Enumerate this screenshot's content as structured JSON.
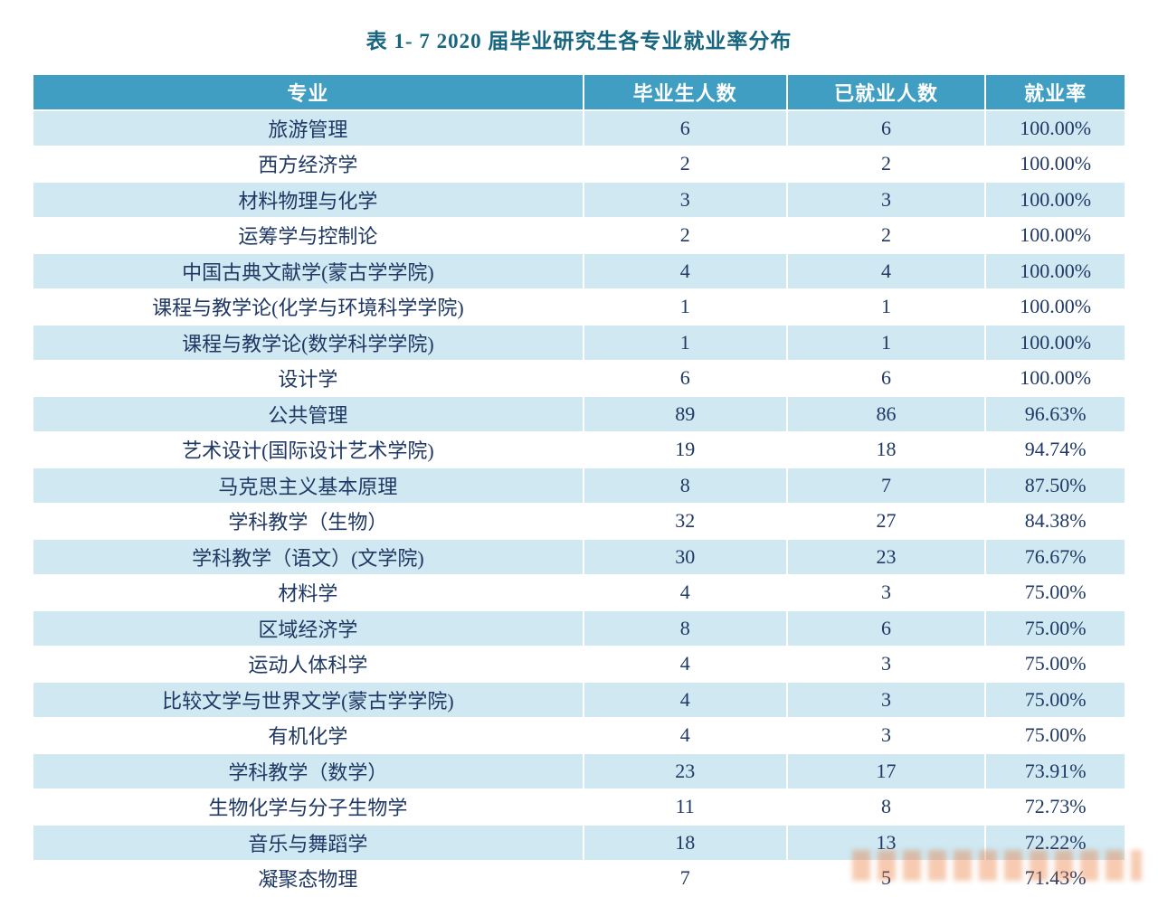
{
  "title": "表 1- 7  2020 届毕业研究生各专业就业率分布",
  "colors": {
    "header_bg": "#3f9ec2",
    "row_alt_bg": "#cfe8f2",
    "title_color": "#17657f",
    "text_color": "#1f3864"
  },
  "table": {
    "headers": [
      "专业",
      "毕业生人数",
      "已就业人数",
      "就业率"
    ],
    "rows": [
      [
        "旅游管理",
        "6",
        "6",
        "100.00%"
      ],
      [
        "西方经济学",
        "2",
        "2",
        "100.00%"
      ],
      [
        "材料物理与化学",
        "3",
        "3",
        "100.00%"
      ],
      [
        "运筹学与控制论",
        "2",
        "2",
        "100.00%"
      ],
      [
        "中国古典文献学(蒙古学学院)",
        "4",
        "4",
        "100.00%"
      ],
      [
        "课程与教学论(化学与环境科学学院)",
        "1",
        "1",
        "100.00%"
      ],
      [
        "课程与教学论(数学科学学院)",
        "1",
        "1",
        "100.00%"
      ],
      [
        "设计学",
        "6",
        "6",
        "100.00%"
      ],
      [
        "公共管理",
        "89",
        "86",
        "96.63%"
      ],
      [
        "艺术设计(国际设计艺术学院)",
        "19",
        "18",
        "94.74%"
      ],
      [
        "马克思主义基本原理",
        "8",
        "7",
        "87.50%"
      ],
      [
        "学科教学（生物）",
        "32",
        "27",
        "84.38%"
      ],
      [
        "学科教学（语文）(文学院)",
        "30",
        "23",
        "76.67%"
      ],
      [
        "材料学",
        "4",
        "3",
        "75.00%"
      ],
      [
        "区域经济学",
        "8",
        "6",
        "75.00%"
      ],
      [
        "运动人体科学",
        "4",
        "3",
        "75.00%"
      ],
      [
        "比较文学与世界文学(蒙古学学院)",
        "4",
        "3",
        "75.00%"
      ],
      [
        "有机化学",
        "4",
        "3",
        "75.00%"
      ],
      [
        "学科教学（数学）",
        "23",
        "17",
        "73.91%"
      ],
      [
        "生物化学与分子生物学",
        "11",
        "8",
        "72.73%"
      ],
      [
        "音乐与舞蹈学",
        "18",
        "13",
        "72.22%"
      ],
      [
        "凝聚态物理",
        "7",
        "5",
        "71.43%"
      ]
    ]
  }
}
